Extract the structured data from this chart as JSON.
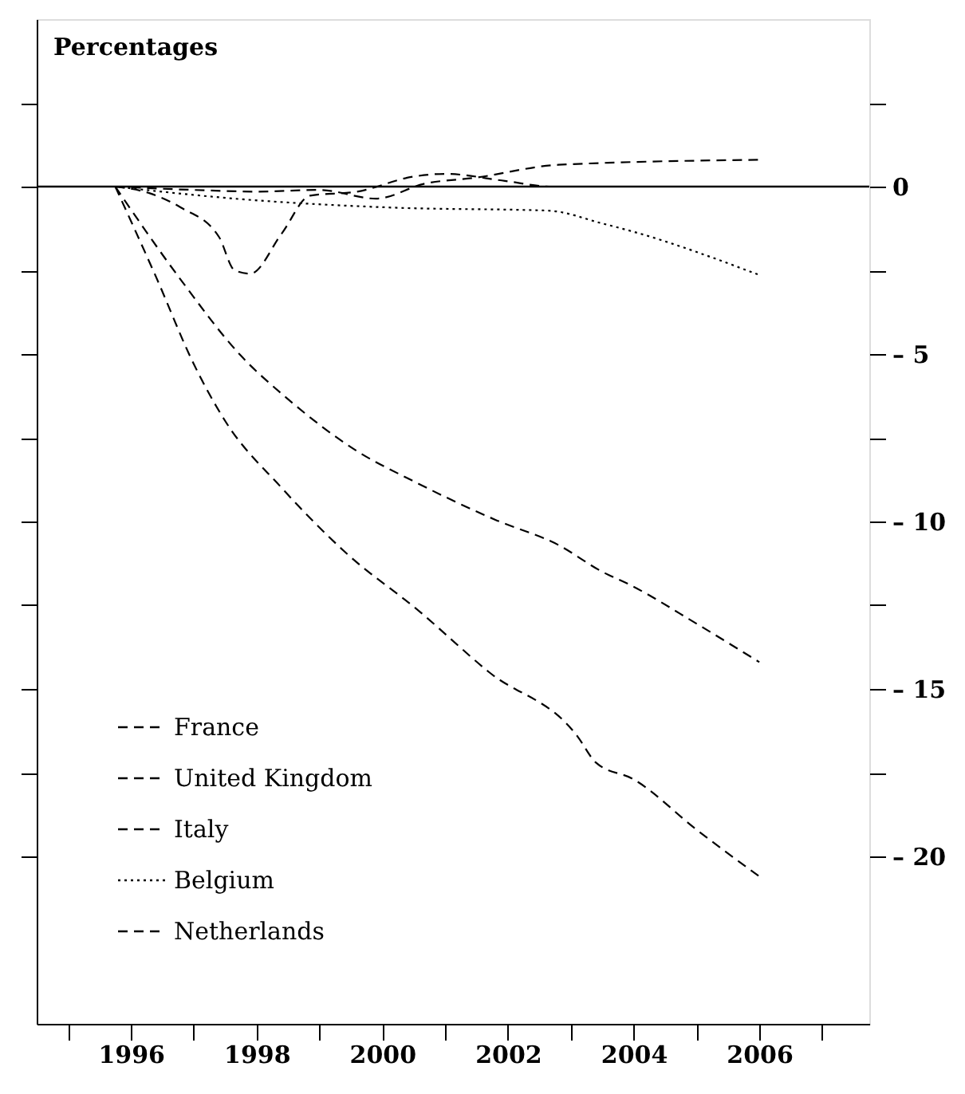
{
  "chart_data": {
    "type": "line",
    "ylabel": "Percentages",
    "legend": "bottom left",
    "grid": false,
    "xlim": [
      1994.5,
      2007.75
    ],
    "xticks": [
      {
        "value": 1995,
        "label": null
      },
      1996,
      {
        "value": 1997,
        "label": null
      },
      1998,
      {
        "value": 1999,
        "label": null
      },
      2000,
      {
        "value": 2001,
        "label": null
      },
      2002,
      {
        "value": 2003,
        "label": null
      },
      2004,
      {
        "value": 2005,
        "label": null
      },
      2006,
      {
        "value": 2007,
        "label": null
      }
    ],
    "ylim": [
      -25,
      5
    ],
    "ref_lines": [
      {
        "axis": "y",
        "value": 0,
        "color": "#000000"
      }
    ],
    "yticks": [
      {
        "value": 2.5,
        "label": null
      },
      0,
      {
        "value": -2.5,
        "label": null
      },
      {
        "value": -5,
        "label": "– 5"
      },
      {
        "value": -7.5,
        "label": null
      },
      {
        "value": -10,
        "label": "– 10"
      },
      {
        "value": -12.5,
        "label": null
      },
      {
        "value": -15,
        "label": "– 15"
      },
      {
        "value": -17.5,
        "label": null
      },
      {
        "value": -20,
        "label": "– 20"
      }
    ],
    "series": [
      {
        "name": "France",
        "color": "#000000",
        "line_style": "dashed",
        "x": [
          1995.75,
          1996.3,
          1996.8,
          1997.4,
          1997.65,
          1997.9,
          1998.4,
          1998.85,
          1999.6,
          2000.5,
          2001.0,
          2001.95,
          2002.7,
          2006.0
        ],
        "values": [
          0,
          -0.2,
          -0.63,
          -1.5,
          -2.5,
          -2.6,
          -1.4,
          -0.27,
          -0.15,
          0.3,
          0.38,
          0.17,
          0.0,
          0.0
        ]
      },
      {
        "name": "United Kingdom",
        "color": "#000000",
        "line_style": "dashed",
        "x": [
          1995.75,
          1996.8,
          1997.75,
          1998.47,
          1999.6,
          2000.5,
          2001.8,
          2002.8,
          2003.5,
          2003.95,
          2005.0,
          2006.0
        ],
        "values": [
          0,
          -2.8,
          -5.05,
          -6.3,
          -7.9,
          -8.8,
          -9.95,
          -10.7,
          -11.5,
          -11.9,
          -13.05,
          -14.2
        ]
      },
      {
        "name": "Italy",
        "color": "#000000",
        "line_style": "dashed",
        "x": [
          1995.75,
          1996.4,
          1997.0,
          1997.5,
          1998.4,
          1999.4,
          2000.6,
          2001.7,
          2003.1,
          2003.4,
          2004.0,
          2005.0,
          2006.0
        ],
        "values": [
          0,
          -2.7,
          -5.3,
          -7.0,
          -9.0,
          -10.9,
          -12.7,
          -14.5,
          -16.4,
          -17.2,
          -17.7,
          -19.2,
          -20.6
        ]
      },
      {
        "name": "Belgium",
        "color": "#000000",
        "line_style": "dotted",
        "x": [
          1995.75,
          1997.65,
          2000.2,
          2002.65,
          2003.5,
          2004.0,
          2006.0
        ],
        "values": [
          0,
          -0.36,
          -0.63,
          -0.72,
          -1.1,
          -1.35,
          -2.64
        ]
      },
      {
        "name": "Netherlands",
        "color": "#000000",
        "line_style": "dashed",
        "x": [
          1995.75,
          1997.0,
          1998.0,
          1999.0,
          1999.9,
          2000.66,
          2001.5,
          2002.8,
          2006.0
        ],
        "values": [
          0,
          -0.1,
          -0.15,
          -0.1,
          -0.36,
          0.08,
          0.27,
          0.65,
          0.8
        ]
      }
    ]
  }
}
